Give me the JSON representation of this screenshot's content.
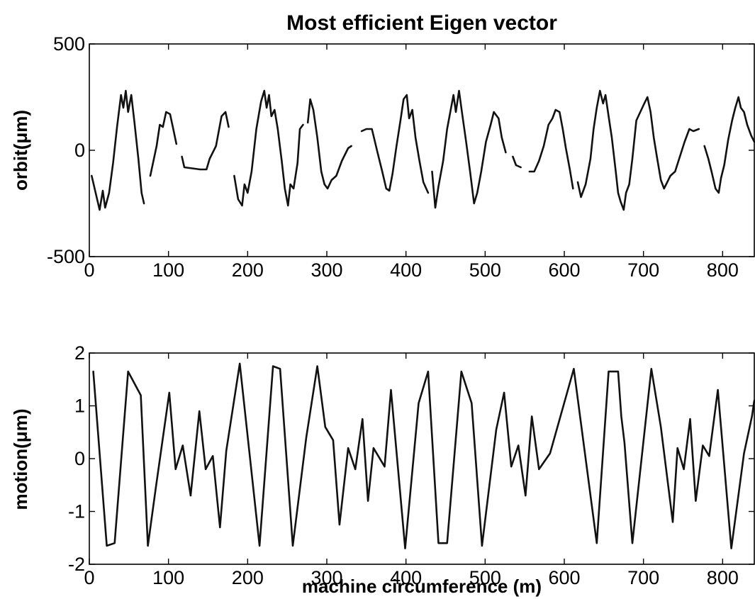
{
  "chart_data": [
    {
      "type": "line",
      "title": "Most efficient Eigen vector",
      "xlabel": "",
      "ylabel": "orbit(μm)",
      "xlim": [
        0,
        840
      ],
      "ylim": [
        -500,
        500
      ],
      "xticks": [
        "0",
        "100",
        "200",
        "300",
        "400",
        "500",
        "600",
        "700",
        "800"
      ],
      "yticks": [
        "500",
        "0",
        "-500"
      ],
      "grid": false,
      "series": [
        {
          "color": "#111111",
          "segments": [
            [
              [
                3,
                -120
              ],
              [
                8,
                -200
              ],
              [
                13,
                -280
              ],
              [
                17,
                -190
              ],
              [
                20,
                -270
              ],
              [
                25,
                -200
              ],
              [
                30,
                -60
              ],
              [
                35,
                110
              ],
              [
                40,
                260
              ],
              [
                43,
                200
              ],
              [
                46,
                280
              ],
              [
                49,
                180
              ],
              [
                53,
                260
              ],
              [
                57,
                130
              ],
              [
                62,
                -40
              ],
              [
                66,
                -200
              ],
              [
                69,
                -250
              ]
            ],
            [
              [
                77,
                -120
              ],
              [
                85,
                20
              ],
              [
                89,
                120
              ],
              [
                93,
                110
              ],
              [
                97,
                180
              ],
              [
                102,
                170
              ],
              [
                106,
                100
              ],
              [
                110,
                30
              ]
            ],
            [
              [
                117,
                -30
              ],
              [
                120,
                -80
              ],
              [
                140,
                -90
              ],
              [
                148,
                -90
              ],
              [
                152,
                -40
              ],
              [
                160,
                20
              ],
              [
                167,
                160
              ],
              [
                172,
                180
              ],
              [
                176,
                110
              ]
            ],
            [
              [
                183,
                -120
              ],
              [
                188,
                -230
              ],
              [
                193,
                -260
              ],
              [
                196,
                -160
              ],
              [
                200,
                -200
              ],
              [
                205,
                -100
              ],
              [
                211,
                100
              ],
              [
                217,
                230
              ],
              [
                221,
                280
              ],
              [
                224,
                200
              ],
              [
                227,
                260
              ],
              [
                230,
                160
              ],
              [
                234,
                190
              ],
              [
                238,
                100
              ],
              [
                243,
                -50
              ],
              [
                247,
                -180
              ],
              [
                251,
                -260
              ],
              [
                254,
                -160
              ],
              [
                258,
                -180
              ],
              [
                263,
                -60
              ],
              [
                266,
                100
              ],
              [
                270,
                120
              ]
            ],
            [
              [
                276,
                130
              ],
              [
                279,
                240
              ],
              [
                283,
                190
              ],
              [
                288,
                60
              ],
              [
                293,
                -100
              ],
              [
                297,
                -160
              ],
              [
                301,
                -180
              ],
              [
                306,
                -140
              ],
              [
                312,
                -120
              ],
              [
                319,
                -50
              ],
              [
                327,
                10
              ],
              [
                331,
                20
              ]
            ],
            [
              [
                344,
                90
              ],
              [
                350,
                100
              ],
              [
                357,
                100
              ],
              [
                364,
                -10
              ],
              [
                370,
                -100
              ],
              [
                375,
                -180
              ],
              [
                379,
                -190
              ],
              [
                383,
                -110
              ],
              [
                388,
                20
              ],
              [
                393,
                140
              ],
              [
                397,
                240
              ],
              [
                401,
                260
              ],
              [
                404,
                150
              ],
              [
                408,
                190
              ],
              [
                412,
                60
              ],
              [
                417,
                -50
              ],
              [
                422,
                -150
              ],
              [
                428,
                -200
              ]
            ],
            [
              [
                433,
                -100
              ],
              [
                437,
                -270
              ],
              [
                441,
                -170
              ],
              [
                447,
                -50
              ],
              [
                452,
                100
              ],
              [
                457,
                200
              ],
              [
                460,
                260
              ],
              [
                463,
                180
              ],
              [
                467,
                280
              ],
              [
                471,
                170
              ],
              [
                476,
                40
              ],
              [
                481,
                -100
              ],
              [
                486,
                -250
              ],
              [
                490,
                -200
              ],
              [
                495,
                -100
              ],
              [
                501,
                40
              ],
              [
                507,
                120
              ],
              [
                511,
                180
              ],
              [
                517,
                150
              ],
              [
                521,
                60
              ],
              [
                526,
                -10
              ]
            ],
            [
              [
                535,
                -30
              ],
              [
                539,
                -70
              ],
              [
                545,
                -80
              ]
            ],
            [
              [
                556,
                -100
              ],
              [
                562,
                -100
              ],
              [
                568,
                -50
              ],
              [
                574,
                20
              ],
              [
                580,
                120
              ],
              [
                585,
                150
              ],
              [
                589,
                190
              ],
              [
                594,
                180
              ],
              [
                598,
                100
              ],
              [
                602,
                10
              ],
              [
                607,
                -90
              ],
              [
                611,
                -180
              ]
            ],
            [
              [
                617,
                -150
              ],
              [
                621,
                -220
              ],
              [
                627,
                -160
              ],
              [
                633,
                -40
              ],
              [
                637,
                100
              ],
              [
                641,
                200
              ],
              [
                645,
                280
              ],
              [
                649,
                220
              ],
              [
                652,
                260
              ],
              [
                656,
                160
              ],
              [
                660,
                60
              ],
              [
                665,
                -100
              ],
              [
                668,
                -200
              ],
              [
                671,
                -240
              ],
              [
                675,
                -280
              ],
              [
                678,
                -200
              ],
              [
                682,
                -160
              ],
              [
                686,
                -40
              ],
              [
                691,
                140
              ],
              [
                696,
                180
              ],
              [
                701,
                220
              ],
              [
                705,
                250
              ],
              [
                709,
                180
              ],
              [
                713,
                60
              ],
              [
                717,
                -30
              ],
              [
                722,
                -140
              ],
              [
                726,
                -180
              ],
              [
                730,
                -150
              ],
              [
                734,
                -120
              ],
              [
                740,
                -100
              ],
              [
                746,
                -30
              ],
              [
                752,
                40
              ],
              [
                758,
                100
              ],
              [
                763,
                90
              ],
              [
                770,
                100
              ]
            ],
            [
              [
                777,
                20
              ],
              [
                782,
                -40
              ],
              [
                786,
                -100
              ],
              [
                791,
                -180
              ],
              [
                795,
                -200
              ],
              [
                798,
                -130
              ],
              [
                802,
                -70
              ],
              [
                807,
                50
              ],
              [
                812,
                140
              ],
              [
                816,
                200
              ],
              [
                820,
                250
              ],
              [
                823,
                200
              ],
              [
                827,
                180
              ],
              [
                831,
                120
              ],
              [
                836,
                70
              ],
              [
                840,
                40
              ]
            ]
          ]
        }
      ]
    },
    {
      "type": "line",
      "title": "",
      "xlabel": "machine circumference (m)",
      "ylabel": "motion(μm)",
      "xlim": [
        0,
        840
      ],
      "ylim": [
        -2,
        2
      ],
      "xticks": [
        "0",
        "100",
        "200",
        "300",
        "400",
        "500",
        "600",
        "700",
        "800"
      ],
      "yticks": [
        "2",
        "1",
        "0",
        "-1",
        "-2"
      ],
      "grid": false,
      "series": [
        {
          "color": "#111111",
          "x": [
            5,
            22,
            32,
            49,
            65,
            74,
            84,
            101,
            109,
            118,
            128,
            139,
            147,
            156,
            165,
            173,
            190,
            215,
            232,
            241,
            257,
            274,
            288,
            298,
            308,
            316,
            327,
            336,
            345,
            352,
            359,
            373,
            381,
            399,
            416,
            428,
            441,
            452,
            470,
            483,
            496,
            514,
            524,
            533,
            542,
            551,
            559,
            568,
            582,
            612,
            641,
            656,
            662,
            668,
            672,
            676,
            686,
            710,
            722,
            737,
            743,
            751,
            759,
            766,
            775,
            783,
            794,
            811,
            827,
            837,
            840
          ],
          "y": [
            1.65,
            -1.65,
            -1.6,
            1.65,
            1.2,
            -1.65,
            -0.55,
            1.25,
            -0.2,
            0.25,
            -0.7,
            0.9,
            -0.2,
            0.05,
            -1.3,
            0.15,
            1.8,
            -1.65,
            1.75,
            1.7,
            -1.65,
            0.4,
            1.75,
            0.6,
            0.35,
            -1.25,
            0.2,
            -0.2,
            0.75,
            -0.8,
            0.2,
            -0.15,
            1.3,
            -1.7,
            1.05,
            1.65,
            -1.6,
            -1.6,
            1.65,
            1.05,
            -1.65,
            0.55,
            1.25,
            -0.15,
            0.25,
            -0.7,
            0.8,
            -0.2,
            0.1,
            1.7,
            -1.6,
            1.65,
            1.65,
            1.65,
            0.8,
            0.3,
            -1.6,
            1.7,
            0.6,
            -1.2,
            0.2,
            -0.2,
            0.75,
            -0.8,
            0.25,
            0.05,
            1.3,
            -1.7,
            0.1,
            0.8,
            1.1
          ]
        }
      ]
    }
  ]
}
